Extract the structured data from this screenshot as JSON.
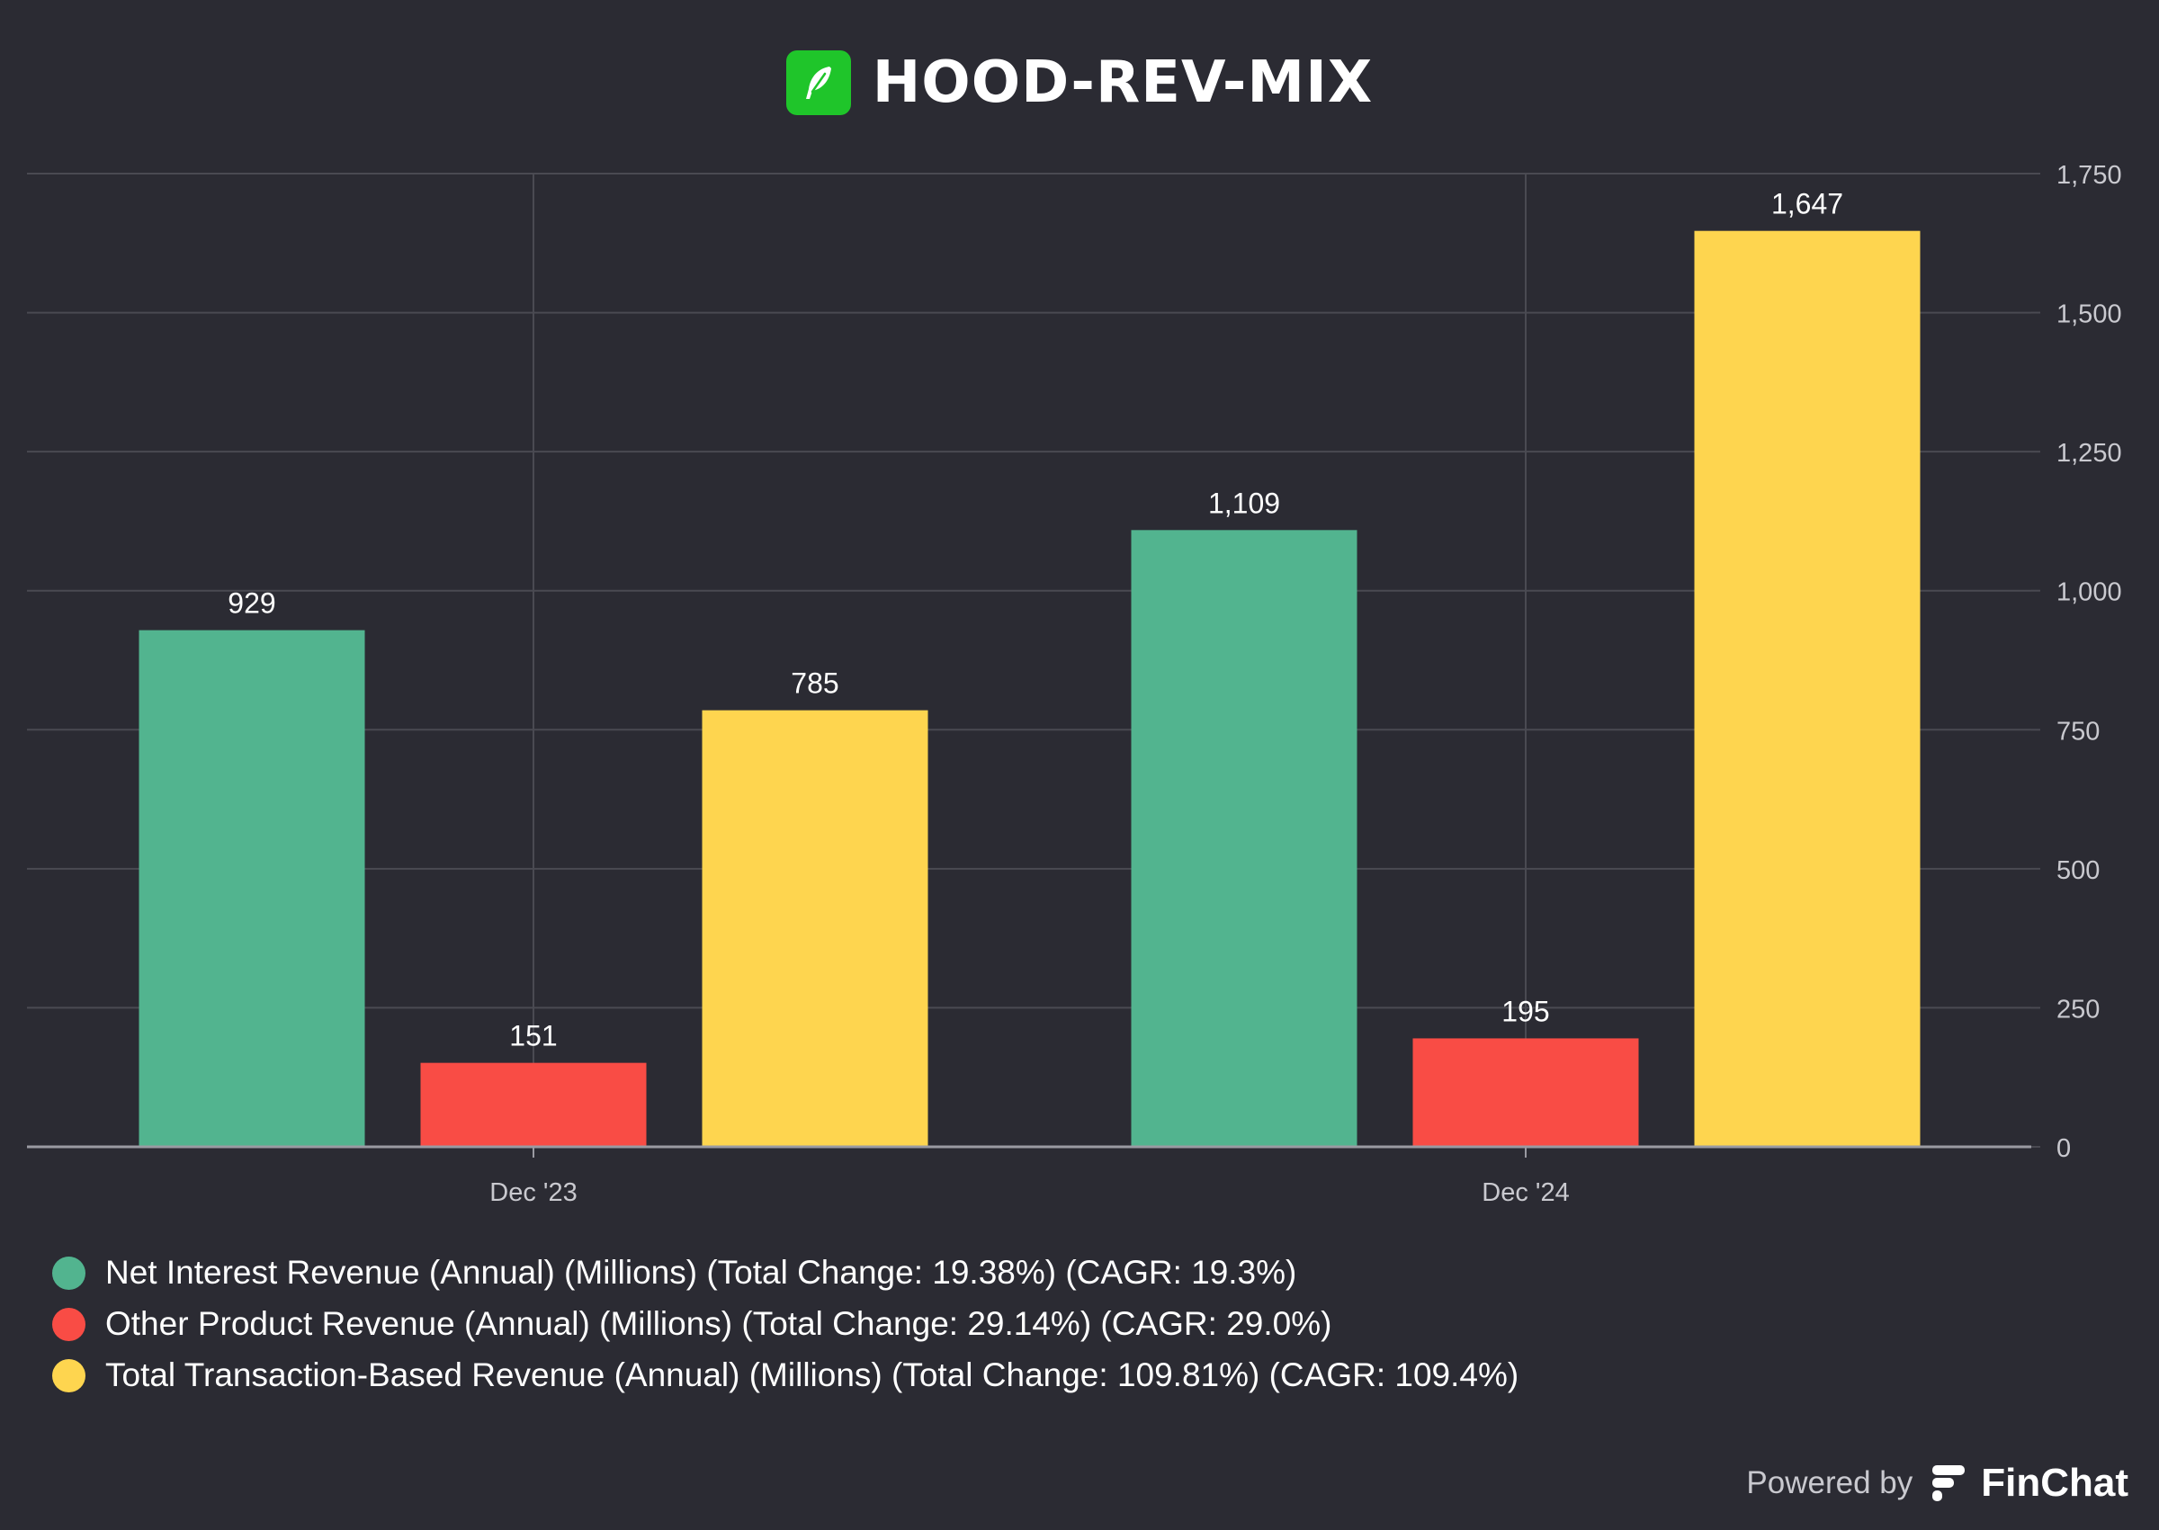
{
  "chart_data": {
    "type": "bar",
    "title": "HOOD-REV-MIX",
    "categories": [
      "Dec '23",
      "Dec '24"
    ],
    "series": [
      {
        "name": "Net Interest Revenue (Annual) (Millions) (Total Change: 19.38%) (CAGR: 19.3%)",
        "values": [
          929,
          1109
        ],
        "color": "#52b48f"
      },
      {
        "name": "Other Product Revenue (Annual) (Millions) (Total Change: 29.14%) (CAGR: 29.0%)",
        "values": [
          151,
          195
        ],
        "color": "#f94c45"
      },
      {
        "name": "Total Transaction-Based Revenue (Annual) (Millions) (Total Change: 109.81%) (CAGR: 109.4%)",
        "values": [
          785,
          1647
        ],
        "color": "#fed54f"
      }
    ],
    "ylim": [
      0,
      1750
    ],
    "yticks": [
      "0",
      "250",
      "500",
      "750",
      "1,000",
      "1,250",
      "1,500",
      "1,750"
    ],
    "y_axis_side": "right",
    "grid": true,
    "legend_position": "bottom-left",
    "data_labels": true
  },
  "logo": {
    "icon": "feather-icon",
    "color": "#1fc52a"
  },
  "footer": {
    "powered_by": "Powered by",
    "brand": "FinChat"
  },
  "colors": {
    "background": "#2b2b33",
    "grid": "#4a4a52",
    "axis_text": "#c9c9cf"
  }
}
